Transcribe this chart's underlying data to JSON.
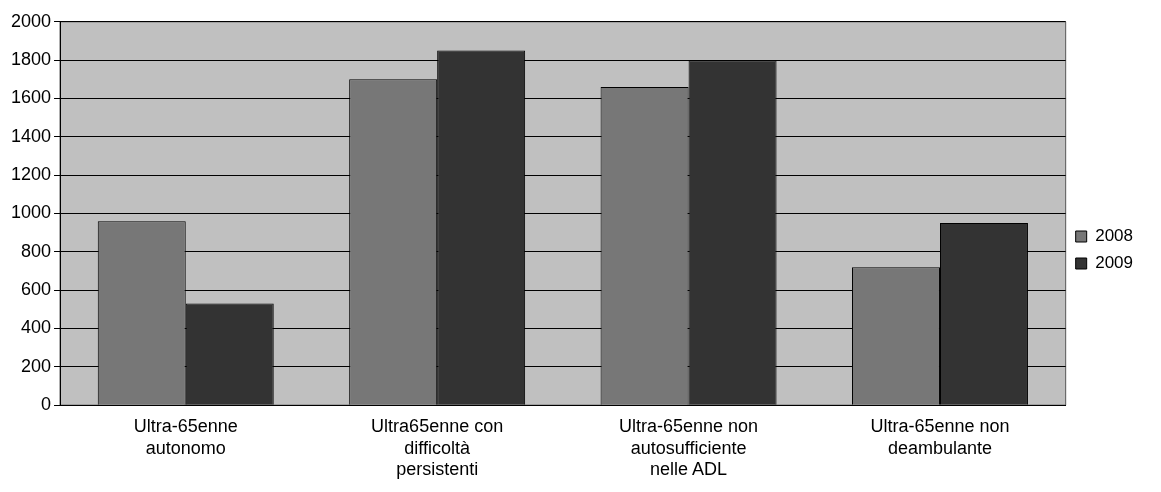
{
  "chart_data": {
    "type": "bar",
    "categories": [
      "Ultra-65enne autonomo",
      "Ultra65enne con difficoltà persistenti",
      "Ultra-65enne non autosufficiente nelle ADL",
      "Ultra-65enne non deambulante"
    ],
    "series": [
      {
        "name": "2008",
        "color": "#777777",
        "values": [
          960,
          1700,
          1660,
          720
        ]
      },
      {
        "name": "2009",
        "color": "#333333",
        "values": [
          530,
          1850,
          1800,
          950
        ]
      }
    ],
    "ylim": [
      0,
      2000
    ],
    "yticks": [
      0,
      200,
      400,
      600,
      800,
      1000,
      1200,
      1400,
      1600,
      1800,
      2000
    ],
    "grid": "y",
    "legend": "right"
  }
}
